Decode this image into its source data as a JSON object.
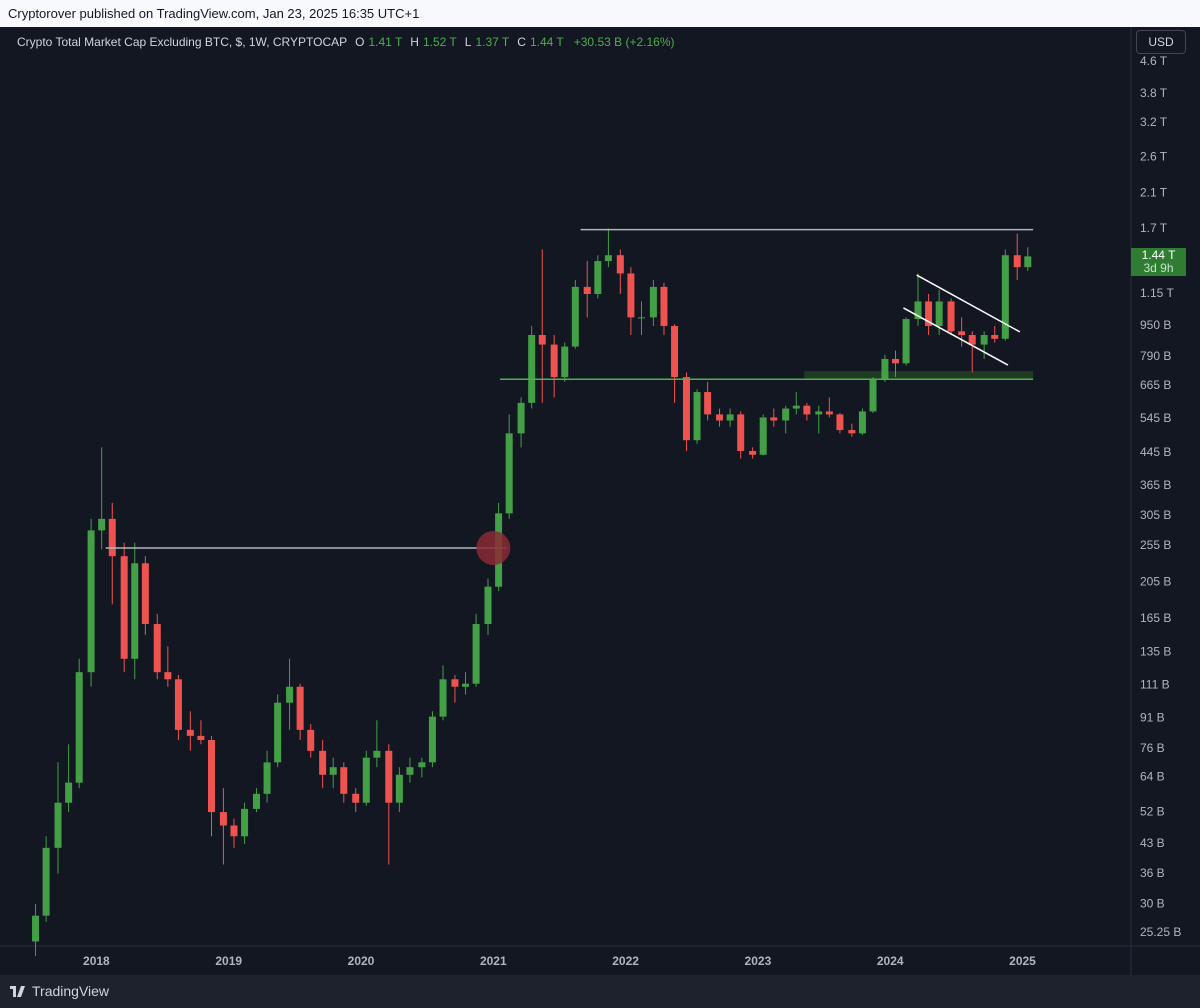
{
  "header": {
    "text": "Cryptorover published on TradingView.com, Jan 23, 2025 16:35 UTC+1"
  },
  "legend": {
    "symbol": "Crypto Total Market Cap Excluding BTC, $, 1W, CRYPTOCAP",
    "open_key": "O",
    "open": "1.41 T",
    "high_key": "H",
    "high": "1.52 T",
    "low_key": "L",
    "low": "1.37 T",
    "close_key": "C",
    "close": "1.44 T",
    "change": "+30.53 B (+2.16%)"
  },
  "currency": "USD",
  "last_price": {
    "value": 1440,
    "label": "1.44 T"
  },
  "countdown": "3d 9h",
  "footer": "TradingView",
  "chart_data": {
    "type": "candlestick",
    "log_scale": true,
    "grid": false,
    "up_color": "#43a047",
    "down_color": "#ef5350",
    "xlim": [
      2017.347,
      2025.82
    ],
    "xticks": [
      2018,
      2019,
      2020,
      2021,
      2022,
      2023,
      2024,
      2025
    ],
    "ylim": [
      23.36,
      5671
    ],
    "yticks": [
      {
        "value": 4600,
        "label": "4.6 T"
      },
      {
        "value": 3800,
        "label": "3.8 T"
      },
      {
        "value": 3200,
        "label": "3.2 T"
      },
      {
        "value": 2600,
        "label": "2.6 T"
      },
      {
        "value": 2100,
        "label": "2.1 T"
      },
      {
        "value": 1700,
        "label": "1.7 T"
      },
      {
        "value": 1150,
        "label": "1.15 T"
      },
      {
        "value": 950,
        "label": "950 B"
      },
      {
        "value": 790,
        "label": "790 B"
      },
      {
        "value": 665,
        "label": "665 B"
      },
      {
        "value": 545,
        "label": "545 B"
      },
      {
        "value": 445,
        "label": "445 B"
      },
      {
        "value": 365,
        "label": "365 B"
      },
      {
        "value": 305,
        "label": "305 B"
      },
      {
        "value": 255,
        "label": "255 B"
      },
      {
        "value": 205,
        "label": "205 B"
      },
      {
        "value": 165,
        "label": "165 B"
      },
      {
        "value": 135,
        "label": "135 B"
      },
      {
        "value": 111,
        "label": "111 B"
      },
      {
        "value": 91,
        "label": "91 B"
      },
      {
        "value": 76,
        "label": "76 B"
      },
      {
        "value": 64,
        "label": "64 B"
      },
      {
        "value": 52,
        "label": "52 B"
      },
      {
        "value": 43,
        "label": "43 B"
      },
      {
        "value": 36,
        "label": "36 B"
      },
      {
        "value": 30,
        "label": "30 B"
      },
      {
        "value": 25.25,
        "label": "25.25 B"
      }
    ],
    "x": [
      2017.54,
      2017.62,
      2017.71,
      2017.79,
      2017.87,
      2017.96,
      2018.04,
      2018.12,
      2018.21,
      2018.29,
      2018.37,
      2018.46,
      2018.54,
      2018.62,
      2018.71,
      2018.79,
      2018.87,
      2018.96,
      2019.04,
      2019.12,
      2019.21,
      2019.29,
      2019.37,
      2019.46,
      2019.54,
      2019.62,
      2019.71,
      2019.79,
      2019.87,
      2019.96,
      2020.04,
      2020.12,
      2020.21,
      2020.29,
      2020.37,
      2020.46,
      2020.54,
      2020.62,
      2020.71,
      2020.79,
      2020.87,
      2020.96,
      2021.04,
      2021.12,
      2021.21,
      2021.29,
      2021.37,
      2021.46,
      2021.54,
      2021.62,
      2021.71,
      2021.79,
      2021.87,
      2021.96,
      2022.04,
      2022.12,
      2022.21,
      2022.29,
      2022.37,
      2022.46,
      2022.54,
      2022.62,
      2022.71,
      2022.79,
      2022.87,
      2022.96,
      2023.04,
      2023.12,
      2023.21,
      2023.29,
      2023.37,
      2023.46,
      2023.54,
      2023.62,
      2023.71,
      2023.79,
      2023.87,
      2023.96,
      2024.04,
      2024.12,
      2024.21,
      2024.29,
      2024.37,
      2024.46,
      2024.54,
      2024.62,
      2024.71,
      2024.79,
      2024.87,
      2024.96,
      2025.04
    ],
    "open": [
      24,
      28,
      42,
      55,
      62,
      120,
      280,
      300,
      240,
      130,
      230,
      160,
      120,
      115,
      85,
      82,
      80,
      52,
      48,
      45,
      53,
      58,
      70,
      100,
      110,
      85,
      75,
      65,
      68,
      58,
      55,
      72,
      75,
      55,
      65,
      68,
      70,
      92,
      115,
      110,
      112,
      160,
      200,
      310,
      500,
      600,
      900,
      850,
      700,
      840,
      1200,
      1150,
      1400,
      1450,
      1300,
      1000,
      1000,
      1200,
      950,
      700,
      480,
      640,
      560,
      540,
      560,
      450,
      440,
      550,
      540,
      580,
      590,
      560,
      570,
      560,
      510,
      500,
      570,
      690,
      780,
      760,
      990,
      1100,
      950,
      1100,
      920,
      900,
      850,
      900,
      880,
      1450,
      1350
    ],
    "high": [
      30,
      45,
      70,
      78,
      130,
      300,
      460,
      330,
      260,
      260,
      240,
      170,
      140,
      118,
      95,
      90,
      82,
      60,
      50,
      55,
      60,
      75,
      105,
      130,
      112,
      88,
      80,
      72,
      70,
      60,
      75,
      90,
      78,
      68,
      72,
      72,
      95,
      125,
      118,
      120,
      170,
      210,
      330,
      560,
      620,
      950,
      1500,
      900,
      860,
      1250,
      1400,
      1450,
      1700,
      1500,
      1350,
      1100,
      1250,
      1230,
      960,
      720,
      650,
      680,
      580,
      580,
      570,
      460,
      560,
      580,
      590,
      640,
      600,
      590,
      620,
      565,
      530,
      580,
      700,
      800,
      820,
      1000,
      1300,
      1150,
      1180,
      1120,
      1000,
      920,
      920,
      950,
      1500,
      1650,
      1520
    ],
    "low": [
      22,
      27,
      36,
      52,
      60,
      110,
      250,
      180,
      120,
      115,
      150,
      115,
      110,
      80,
      75,
      78,
      45,
      38,
      42,
      43,
      52,
      55,
      68,
      85,
      80,
      72,
      60,
      60,
      55,
      52,
      54,
      68,
      38,
      52,
      62,
      64,
      68,
      90,
      100,
      105,
      110,
      150,
      195,
      300,
      460,
      580,
      600,
      620,
      680,
      830,
      1000,
      1120,
      1350,
      1150,
      900,
      900,
      950,
      900,
      600,
      450,
      470,
      540,
      520,
      520,
      430,
      430,
      438,
      520,
      500,
      560,
      540,
      500,
      550,
      500,
      490,
      495,
      565,
      680,
      700,
      750,
      950,
      900,
      900,
      900,
      840,
      720,
      780,
      860,
      870,
      1250,
      1320
    ],
    "close": [
      28,
      42,
      55,
      62,
      120,
      280,
      300,
      240,
      130,
      230,
      160,
      120,
      115,
      85,
      82,
      80,
      52,
      48,
      45,
      53,
      58,
      70,
      100,
      110,
      85,
      75,
      65,
      68,
      58,
      55,
      72,
      75,
      55,
      65,
      68,
      70,
      92,
      115,
      110,
      112,
      160,
      200,
      310,
      500,
      600,
      900,
      850,
      700,
      840,
      1200,
      1150,
      1400,
      1450,
      1300,
      1000,
      1000,
      1200,
      950,
      700,
      480,
      640,
      560,
      540,
      560,
      450,
      440,
      550,
      540,
      580,
      590,
      560,
      570,
      560,
      510,
      500,
      570,
      690,
      780,
      760,
      990,
      1100,
      950,
      1100,
      920,
      900,
      850,
      900,
      880,
      1450,
      1350,
      1440
    ],
    "annotations": {
      "horizontal_lines": [
        {
          "y": 1690,
          "x": [
            2021.66,
            2025.08
          ],
          "color": "#b2b5be"
        },
        {
          "y": 252,
          "x": [
            2018.07,
            2021.1
          ],
          "color": "#b2b5be"
        },
        {
          "y": 691,
          "x": [
            2021.05,
            2025.08
          ],
          "color": "#4caf50"
        }
      ],
      "zone": {
        "y": [
          691,
          725
        ],
        "x": [
          2023.35,
          2025.08
        ],
        "color": "#1f3b24"
      },
      "channel": [
        {
          "x": [
            2024.2,
            2024.98
          ],
          "y": [
            1288,
            917
          ]
        },
        {
          "x": [
            2024.1,
            2024.89
          ],
          "y": [
            1058,
            752
          ]
        }
      ],
      "circle": {
        "x": 2021.0,
        "y": 252,
        "color": "#8b2a35"
      }
    }
  }
}
